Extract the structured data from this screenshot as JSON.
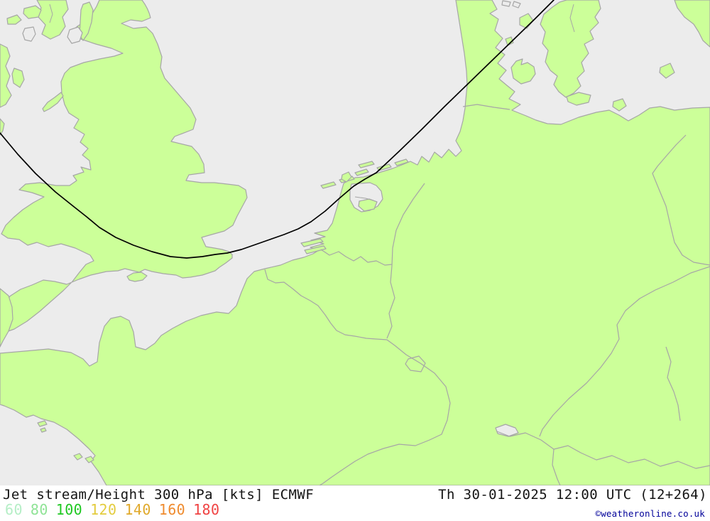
{
  "map": {
    "colors": {
      "sea": "#ececec",
      "land": "#ccff99",
      "coastline": "#a6a6a6",
      "contour": "#000000"
    }
  },
  "legend": {
    "title": "Jet stream/Height 300 hPa [kts] ECMWF",
    "datetime": "Th 30-01-2025 12:00 UTC (12+264)",
    "scale": [
      {
        "value": "60",
        "color": "#b5eec6"
      },
      {
        "value": "80",
        "color": "#8fe396"
      },
      {
        "value": "100",
        "color": "#1fc822"
      },
      {
        "value": "120",
        "color": "#e3cc3e"
      },
      {
        "value": "140",
        "color": "#e0a92b"
      },
      {
        "value": "160",
        "color": "#ef8b2e"
      },
      {
        "value": "180",
        "color": "#f04343"
      }
    ],
    "copyright": "©weatheronline.co.uk",
    "copyright_color": "#000099"
  }
}
